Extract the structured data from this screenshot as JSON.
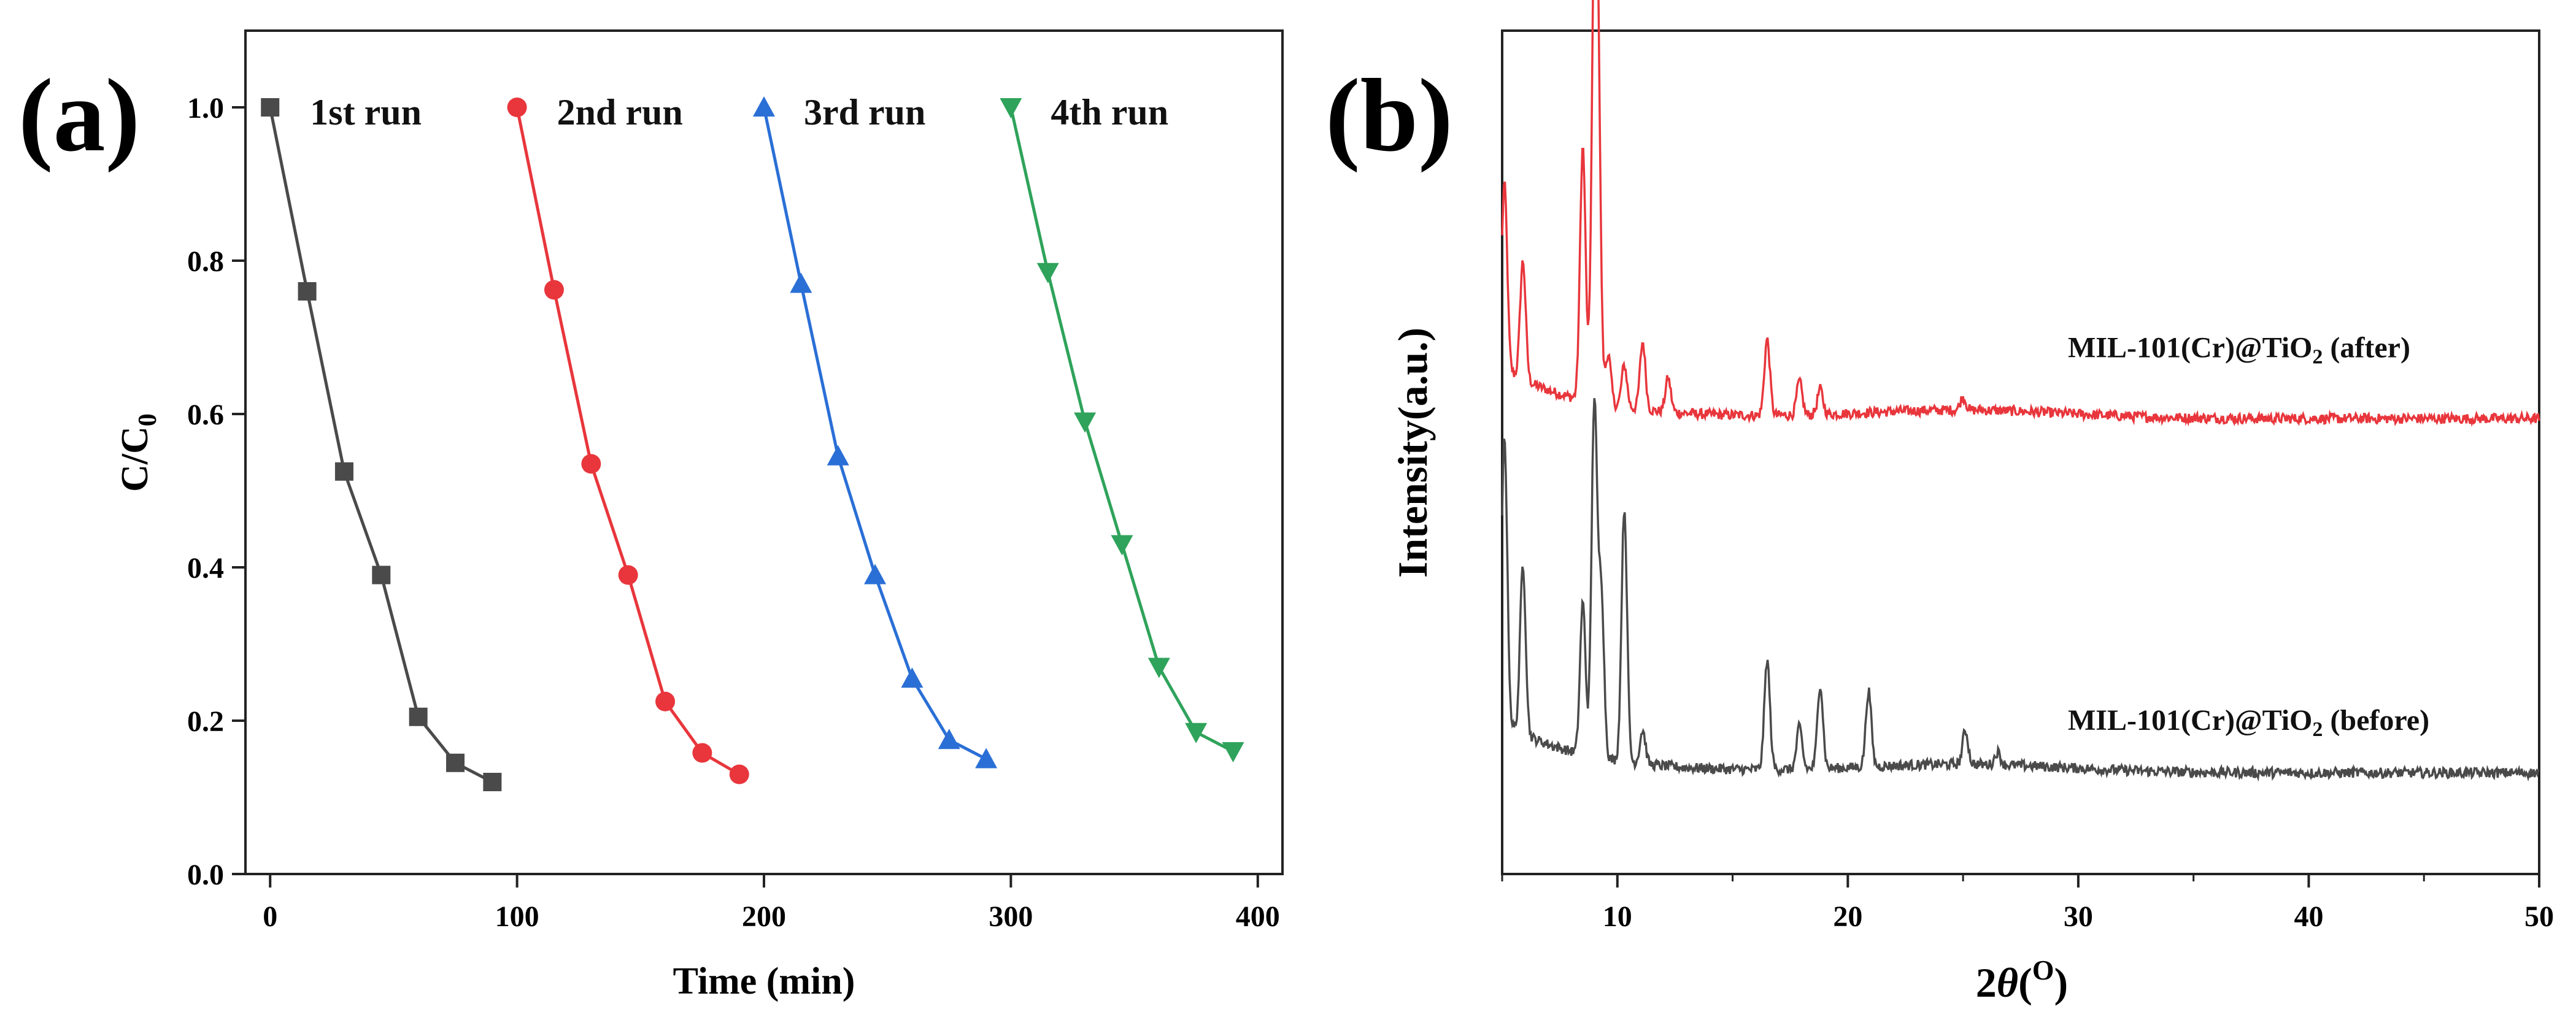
{
  "chart_data": [
    {
      "panel_label": "(a)",
      "type": "line",
      "xlabel": "Time (min)",
      "ylabel_main": "C/C",
      "ylabel_sub": "0",
      "xlim": [
        -10,
        410
      ],
      "ylim": [
        0,
        1.1
      ],
      "x_ticks": [
        0,
        100,
        200,
        300,
        400
      ],
      "y_ticks": [
        "0.0",
        "0.2",
        "0.4",
        "0.6",
        "0.8",
        "1.0"
      ],
      "series": [
        {
          "name": "1st run",
          "color": "#4a4a4a",
          "marker": "square",
          "x": [
            0,
            15,
            30,
            45,
            60,
            75,
            90
          ],
          "y": [
            1.0,
            0.76,
            0.525,
            0.39,
            0.205,
            0.145,
            0.12
          ]
        },
        {
          "name": "2nd run",
          "color": "#e8363c",
          "marker": "circle",
          "x": [
            100,
            115,
            130,
            145,
            160,
            175,
            190
          ],
          "y": [
            1.0,
            0.762,
            0.535,
            0.39,
            0.225,
            0.158,
            0.13
          ]
        },
        {
          "name": "3rd run",
          "color": "#2a6fd6",
          "marker": "triangle-up",
          "x": [
            200,
            215,
            230,
            245,
            260,
            275,
            290
          ],
          "y": [
            1.0,
            0.77,
            0.545,
            0.39,
            0.255,
            0.175,
            0.15
          ]
        },
        {
          "name": "4th run",
          "color": "#2fa35b",
          "marker": "triangle-down",
          "x": [
            300,
            315,
            330,
            345,
            360,
            375,
            390
          ],
          "y": [
            1.0,
            0.785,
            0.59,
            0.43,
            0.27,
            0.185,
            0.16
          ]
        }
      ]
    },
    {
      "panel_label": "(b)",
      "type": "line",
      "xlabel": "2θ(O)",
      "xlabel_prefix": "2",
      "xlabel_theta": "θ",
      "xlabel_open": "(",
      "xlabel_sup": "O",
      "xlabel_close": ")",
      "ylabel": "Intensity(a.u.)",
      "xlim": [
        5,
        50
      ],
      "x_ticks": [
        "10",
        "20",
        "30",
        "40",
        "50"
      ],
      "series": [
        {
          "name": "MIL-101(Cr)@TiO2 (after)",
          "label_main": "MIL-101(Cr)@TiO",
          "label_sub": "2",
          "label_tail": " (after)",
          "color": "#e8363c",
          "baseline": 0.54,
          "peaks": [
            [
              5.1,
              0.22
            ],
            [
              5.9,
              0.14
            ],
            [
              8.5,
              0.3
            ],
            [
              9.0,
              0.46
            ],
            [
              9.15,
              0.35
            ],
            [
              9.6,
              0.06
            ],
            [
              10.3,
              0.05
            ],
            [
              11.1,
              0.08
            ],
            [
              12.2,
              0.04
            ],
            [
              16.5,
              0.09
            ],
            [
              17.9,
              0.04
            ],
            [
              18.8,
              0.03
            ],
            [
              25.0,
              0.015
            ]
          ]
        },
        {
          "name": "MIL-101(Cr)@TiO2 (before)",
          "label_main": "MIL-101(Cr)@TiO",
          "label_sub": "2",
          "label_tail": " (before)",
          "color": "#4a4a4a",
          "baseline": 0.12,
          "peaks": [
            [
              5.1,
              0.34
            ],
            [
              5.9,
              0.2
            ],
            [
              8.5,
              0.18
            ],
            [
              9.0,
              0.42
            ],
            [
              9.3,
              0.2
            ],
            [
              10.3,
              0.3
            ],
            [
              11.1,
              0.04
            ],
            [
              16.5,
              0.13
            ],
            [
              17.9,
              0.05
            ],
            [
              18.8,
              0.1
            ],
            [
              20.9,
              0.09
            ],
            [
              25.1,
              0.04
            ],
            [
              26.5,
              0.015
            ]
          ]
        }
      ]
    }
  ]
}
